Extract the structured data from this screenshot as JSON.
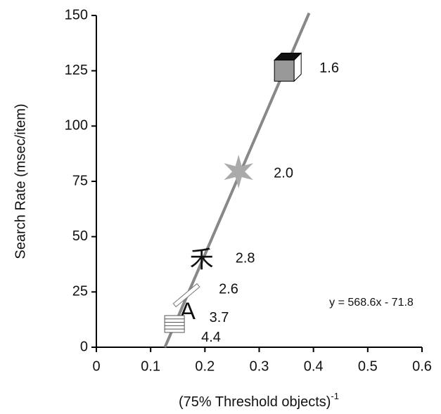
{
  "chart_data": {
    "type": "scatter",
    "y_label": "Search Rate (msec/item)",
    "x_label": "(75% Threshold objects)",
    "x_label_superscript": "-1",
    "annotation": "y = 568.6x - 71.8",
    "xlim": [
      0,
      0.6
    ],
    "xticks": [
      0,
      0.1,
      0.2,
      0.3,
      0.4,
      0.5,
      0.6
    ],
    "ylim": [
      0,
      150
    ],
    "yticks": [
      0,
      25,
      50,
      75,
      100,
      125,
      150
    ],
    "series": [
      {
        "color": "#aaaaaa",
        "x": [
          0.354,
          0.262,
          0.194,
          0.166,
          0.168,
          0.144
        ],
        "values": [
          126,
          79.4,
          39,
          23.5,
          15.6,
          10.5
        ],
        "point_labels": [
          "1.6",
          "2.0",
          "2.8",
          "2.6",
          "3.7",
          "4.4"
        ],
        "glyphs": [
          null,
          null,
          "禾",
          null,
          "A",
          null
        ]
      }
    ],
    "fit_line": {
      "color": "#888888",
      "x": [
        0.1263,
        0.392
      ],
      "values": [
        0,
        151.1
      ]
    }
  }
}
